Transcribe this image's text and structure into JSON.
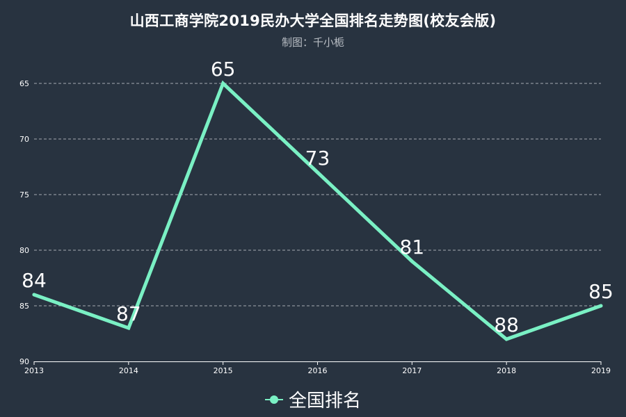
{
  "title": "山西工商学院2019民办大学全国排名走势图(校友会版)",
  "subtitle": "制图：千小栀",
  "colors": {
    "background": "#283340",
    "line": "#7af0c4",
    "axis": "#ffffff",
    "grid": "#d0d4d8"
  },
  "chart_data": {
    "type": "line",
    "title": "山西工商学院2019民办大学全国排名走势图(校友会版)",
    "subtitle": "制图：千小栀",
    "x": [
      "2013",
      "2014",
      "2015",
      "2016",
      "2017",
      "2018",
      "2019"
    ],
    "series": [
      {
        "name": "全国排名",
        "values": [
          84,
          87,
          65,
          73,
          81,
          88,
          85
        ]
      }
    ],
    "ylim": [
      65,
      90
    ],
    "y_inverted": true,
    "y_ticks": [
      65,
      70,
      75,
      80,
      85,
      90
    ],
    "grid": "horizontal dashed",
    "data_labels": true,
    "legend": "bottom-center",
    "xlabel": "",
    "ylabel": ""
  }
}
